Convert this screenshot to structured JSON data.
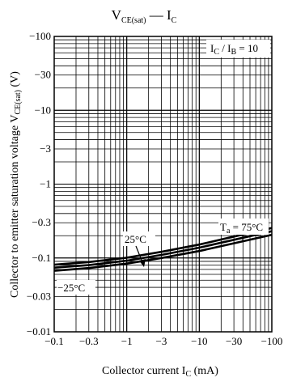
{
  "chart_data": {
    "type": "line",
    "title": {
      "main": "V",
      "sub": "CE(sat)",
      "sep": " — ",
      "main2": "I",
      "sub2": "C"
    },
    "xlabel": {
      "text": "Collector current  I",
      "sub": "C",
      "unit": "  (mA)"
    },
    "ylabel": {
      "text": "Collector to emitter saturation voltage  V",
      "sub": "CE(sat)",
      "unit": "  (V)"
    },
    "x_scale": "log",
    "y_scale": "log",
    "xlim": [
      -0.1,
      -100
    ],
    "ylim": [
      -0.01,
      -100
    ],
    "x_ticks": [
      {
        "value": -0.1,
        "label": "−0.1"
      },
      {
        "value": -0.3,
        "label": "−0.3"
      },
      {
        "value": -1,
        "label": "−1"
      },
      {
        "value": -3,
        "label": "−3"
      },
      {
        "value": -10,
        "label": "−10"
      },
      {
        "value": -30,
        "label": "−30"
      },
      {
        "value": -100,
        "label": "−100"
      }
    ],
    "y_ticks": [
      {
        "value": -0.01,
        "label": "−0.01"
      },
      {
        "value": -0.03,
        "label": "−0.03"
      },
      {
        "value": -0.1,
        "label": "−0.1"
      },
      {
        "value": -0.3,
        "label": "−0.3"
      },
      {
        "value": -1,
        "label": "−1"
      },
      {
        "value": -3,
        "label": "−3"
      },
      {
        "value": -10,
        "label": "−10"
      },
      {
        "value": -30,
        "label": "−30"
      },
      {
        "value": -100,
        "label": "−100"
      }
    ],
    "grid": true,
    "condition": {
      "text": "I",
      "sub": "C",
      "mid": " / I",
      "sub2": "B",
      "rest": " = 10"
    },
    "series": [
      {
        "name": "T_a = 75°C",
        "x": [
          -0.1,
          -0.3,
          -1,
          -3,
          -10,
          -30,
          -100
        ],
        "y": [
          -0.081,
          -0.088,
          -0.101,
          -0.121,
          -0.152,
          -0.195,
          -0.255
        ]
      },
      {
        "name": "25°C",
        "x": [
          -0.1,
          -0.3,
          -1,
          -3,
          -10,
          -30,
          -100
        ],
        "y": [
          -0.074,
          -0.08,
          -0.092,
          -0.11,
          -0.138,
          -0.176,
          -0.23
        ]
      },
      {
        "name": "−25°C",
        "x": [
          -0.1,
          -0.3,
          -1,
          -3,
          -10,
          -30,
          -100
        ],
        "y": [
          -0.067,
          -0.073,
          -0.084,
          -0.1,
          -0.124,
          -0.158,
          -0.206
        ]
      }
    ],
    "annotations": [
      {
        "text": "T",
        "sub": "a",
        "rest": " = 75°C"
      },
      {
        "text": "25°C"
      },
      {
        "text": "−25°C"
      }
    ]
  }
}
